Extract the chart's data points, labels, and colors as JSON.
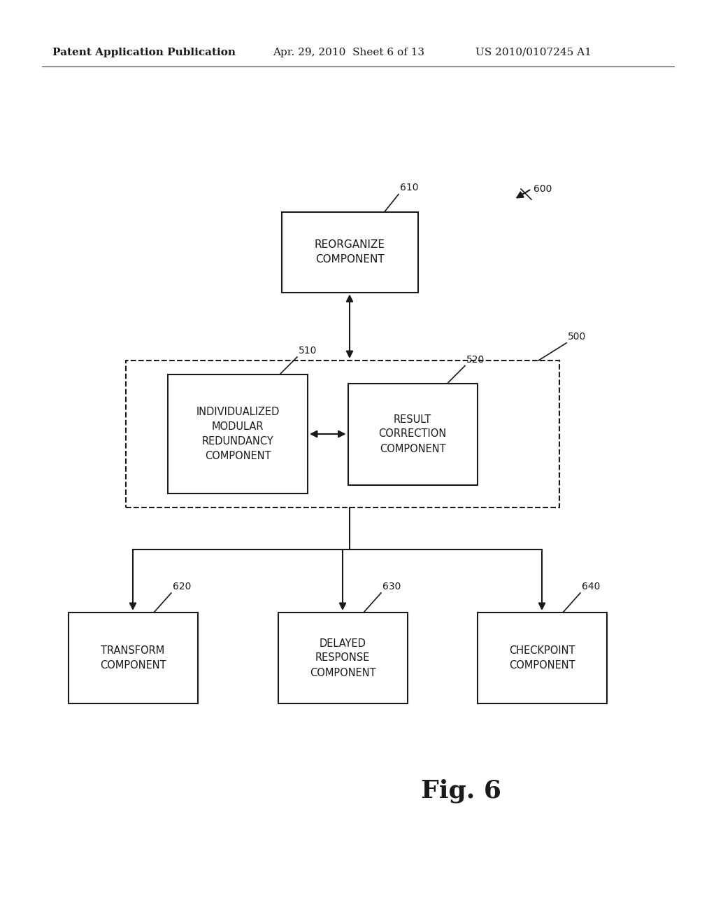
{
  "bg_color": "#ffffff",
  "header_left": "Patent Application Publication",
  "header_mid": "Apr. 29, 2010  Sheet 6 of 13",
  "header_right": "US 2010/0107245 A1",
  "fig_label": "Fig. 6",
  "label_600": "600",
  "label_610": "610",
  "label_500": "500",
  "label_510": "510",
  "label_520": "520",
  "label_620": "620",
  "label_630": "630",
  "label_640": "640",
  "box_610_text": "REORGANIZE\nCOMPONENT",
  "box_510_text": "INDIVIDUALIZED\nMODULAR\nREDUNDANCY\nCOMPONENT",
  "box_520_text": "RESULT\nCORRECTION\nCOMPONENT",
  "box_620_text": "TRANSFORM\nCOMPONENT",
  "box_630_text": "DELAYED\nRESPONSE\nCOMPONENT",
  "box_640_text": "CHECKPOINT\nCOMPONENT"
}
